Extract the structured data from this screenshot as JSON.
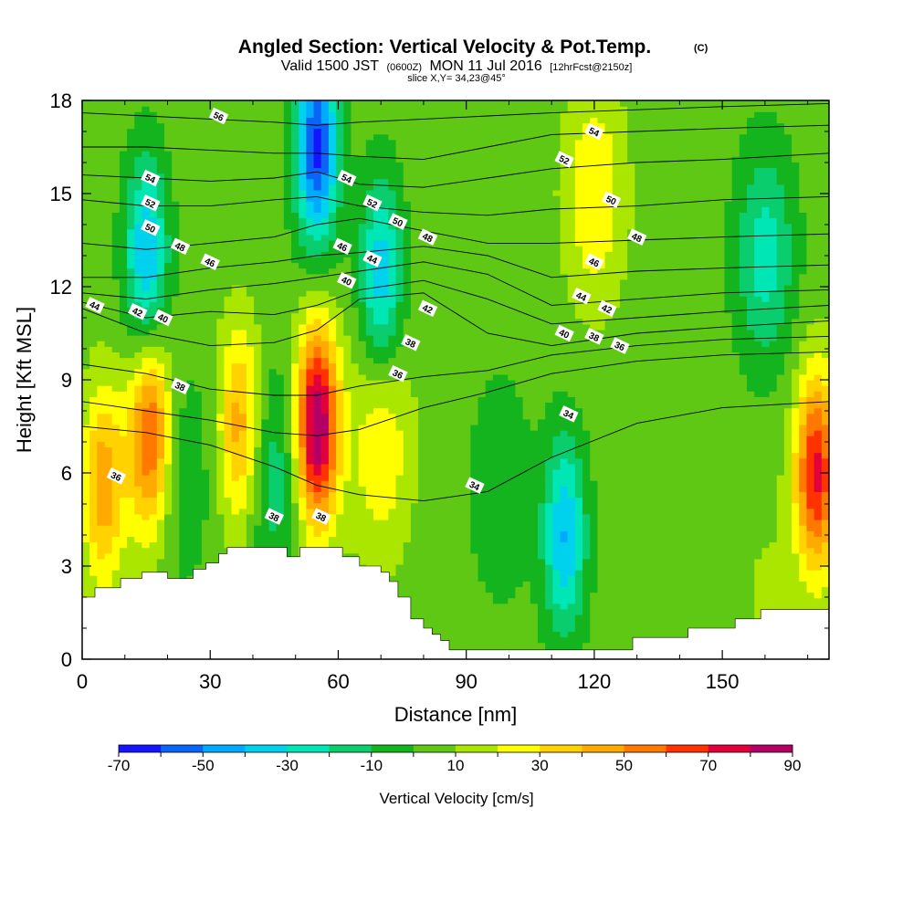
{
  "chart_data": {
    "type": "heatmap",
    "title": "Angled Section: Vertical Velocity & Pot.Temp.",
    "title_mark": "(C)",
    "subtitle_parts": [
      "Valid 1500 JST",
      "(0600Z)",
      "MON 11 Jul 2016",
      "[12hrFcst@2150z]"
    ],
    "slice_label": "slice X,Y= 34,23@45°",
    "xlabel": "Distance [nm]",
    "ylabel": "Height [Kft MSL]",
    "xlim": [
      0,
      175
    ],
    "ylim": [
      0,
      18
    ],
    "xticks": [
      0,
      30,
      60,
      90,
      120,
      150
    ],
    "yticks": [
      0,
      3,
      6,
      9,
      12,
      15,
      18
    ],
    "colorbar": {
      "label": "Vertical Velocity [cm/s]",
      "tick_labels": [
        -70,
        -50,
        -30,
        -10,
        10,
        30,
        50,
        70,
        90
      ],
      "bounds": [
        -70,
        -60,
        -50,
        -40,
        -30,
        -20,
        -10,
        0,
        10,
        20,
        30,
        40,
        50,
        60,
        70,
        80,
        90
      ],
      "colors": [
        "#1414ff",
        "#0a64f5",
        "#00aaff",
        "#00d2ee",
        "#00e6b4",
        "#0acd6e",
        "#14b41e",
        "#5fc814",
        "#aae600",
        "#ffff00",
        "#ffd200",
        "#ffaa00",
        "#ff7800",
        "#ff3200",
        "#e1003c",
        "#b40064"
      ]
    },
    "w_features": [
      {
        "x": 55,
        "z": 7.5,
        "w": 88
      },
      {
        "x": 16,
        "z": 7.2,
        "w": 60
      },
      {
        "x": 5,
        "z": 5.6,
        "w": 42
      },
      {
        "x": 37,
        "z": 7.5,
        "w": 42
      },
      {
        "x": 172,
        "z": 6.0,
        "w": 68
      },
      {
        "x": 70,
        "z": 7.0,
        "w": 25
      },
      {
        "x": 55,
        "z": 16.5,
        "w": -68
      },
      {
        "x": 15,
        "z": 13.0,
        "w": -46
      },
      {
        "x": 70,
        "z": 12.3,
        "w": -42
      },
      {
        "x": 113,
        "z": 4.0,
        "w": -45
      },
      {
        "x": 160,
        "z": 13.0,
        "w": -30
      },
      {
        "x": 98,
        "z": 5.5,
        "w": -15
      },
      {
        "x": 45,
        "z": 6.0,
        "w": -22
      },
      {
        "x": 23,
        "z": 6.0,
        "w": -15
      },
      {
        "x": 120,
        "z": 15.0,
        "w": 25
      },
      {
        "x": 160,
        "z": 2.0,
        "w": 6
      }
    ],
    "theta_isolines": [
      {
        "label": "34",
        "z": [
          7.5,
          7.3,
          6.9,
          6.2,
          5.6,
          5.3,
          5.1,
          5.4,
          6.5,
          7.6,
          8.1,
          8.3
        ]
      },
      {
        "label": "36",
        "z": [
          8.3,
          8.0,
          7.7,
          7.3,
          7.2,
          7.4,
          8.1,
          8.6,
          9.2,
          9.6,
          9.8,
          9.9
        ]
      },
      {
        "label": "38",
        "z": [
          9.5,
          9.2,
          8.7,
          8.5,
          8.5,
          8.8,
          9.1,
          9.3,
          9.8,
          10.1,
          10.3,
          10.4
        ]
      },
      {
        "label": "40",
        "z": [
          11.3,
          10.5,
          10.1,
          10.2,
          10.6,
          11.6,
          11.8,
          10.5,
          10.1,
          10.5,
          10.7,
          10.9
        ]
      },
      {
        "label": "42",
        "z": [
          11.5,
          11.0,
          11.2,
          11.1,
          11.4,
          11.9,
          12.2,
          11.6,
          10.8,
          11.0,
          11.2,
          11.4
        ]
      },
      {
        "label": "44",
        "z": [
          11.8,
          11.6,
          11.9,
          12.1,
          12.3,
          12.5,
          12.8,
          12.4,
          11.4,
          11.6,
          11.8,
          11.9
        ]
      },
      {
        "label": "46",
        "z": [
          12.3,
          12.3,
          12.6,
          12.8,
          13.0,
          13.1,
          13.3,
          13.0,
          12.3,
          12.5,
          12.6,
          12.7
        ]
      },
      {
        "label": "48",
        "z": [
          13.4,
          13.2,
          13.4,
          13.6,
          14.0,
          14.2,
          13.8,
          13.4,
          13.4,
          13.5,
          13.6,
          13.7
        ]
      },
      {
        "label": "50",
        "z": [
          14.8,
          14.6,
          14.6,
          14.8,
          14.9,
          14.6,
          14.4,
          14.3,
          14.5,
          14.6,
          14.8,
          14.9
        ]
      },
      {
        "label": "52",
        "z": [
          15.6,
          15.5,
          15.4,
          15.5,
          15.7,
          15.3,
          15.2,
          15.5,
          15.8,
          16.0,
          16.1,
          16.3
        ]
      },
      {
        "label": "54",
        "z": [
          16.5,
          16.5,
          16.4,
          16.3,
          16.3,
          16.2,
          16.1,
          16.5,
          16.9,
          17.0,
          17.1,
          17.2
        ]
      },
      {
        "label": "56",
        "z": [
          17.6,
          17.5,
          17.4,
          17.3,
          17.2,
          17.3,
          17.4,
          17.5,
          17.6,
          17.7,
          17.8,
          17.9
        ]
      }
    ],
    "theta_isoline_x": [
      0,
      15,
      30,
      45,
      55,
      65,
      80,
      95,
      110,
      130,
      150,
      175
    ],
    "contour_labels": [
      {
        "text": "56",
        "x": 32,
        "z": 17.5
      },
      {
        "text": "54",
        "x": 16,
        "z": 15.5
      },
      {
        "text": "52",
        "x": 16,
        "z": 14.7
      },
      {
        "text": "50",
        "x": 16,
        "z": 13.9
      },
      {
        "text": "48",
        "x": 23,
        "z": 13.3
      },
      {
        "text": "46",
        "x": 30,
        "z": 12.8
      },
      {
        "text": "44",
        "x": 3,
        "z": 11.4
      },
      {
        "text": "42",
        "x": 13,
        "z": 11.2
      },
      {
        "text": "40",
        "x": 19,
        "z": 11.0
      },
      {
        "text": "38",
        "x": 23,
        "z": 8.8
      },
      {
        "text": "36",
        "x": 8,
        "z": 5.9
      },
      {
        "text": "38",
        "x": 45,
        "z": 4.6
      },
      {
        "text": "38",
        "x": 56,
        "z": 4.6
      },
      {
        "text": "54",
        "x": 62,
        "z": 15.5
      },
      {
        "text": "52",
        "x": 68,
        "z": 14.7
      },
      {
        "text": "50",
        "x": 74,
        "z": 14.1
      },
      {
        "text": "48",
        "x": 81,
        "z": 13.6
      },
      {
        "text": "46",
        "x": 61,
        "z": 13.3
      },
      {
        "text": "44",
        "x": 68,
        "z": 12.9
      },
      {
        "text": "40",
        "x": 62,
        "z": 12.2
      },
      {
        "text": "42",
        "x": 81,
        "z": 11.3
      },
      {
        "text": "38",
        "x": 77,
        "z": 10.2
      },
      {
        "text": "36",
        "x": 74,
        "z": 9.2
      },
      {
        "text": "34",
        "x": 92,
        "z": 5.6
      },
      {
        "text": "54",
        "x": 120,
        "z": 17.0
      },
      {
        "text": "52",
        "x": 113,
        "z": 16.1
      },
      {
        "text": "50",
        "x": 124,
        "z": 14.8
      },
      {
        "text": "48",
        "x": 130,
        "z": 13.6
      },
      {
        "text": "46",
        "x": 120,
        "z": 12.8
      },
      {
        "text": "44",
        "x": 117,
        "z": 11.7
      },
      {
        "text": "42",
        "x": 123,
        "z": 11.3
      },
      {
        "text": "40",
        "x": 113,
        "z": 10.5
      },
      {
        "text": "38",
        "x": 120,
        "z": 10.4
      },
      {
        "text": "36",
        "x": 126,
        "z": 10.1
      },
      {
        "text": "34",
        "x": 114,
        "z": 7.9
      }
    ],
    "terrain": {
      "x": [
        0,
        3,
        3,
        9,
        9,
        14,
        14,
        20,
        20,
        26,
        26,
        29,
        29,
        32,
        32,
        34,
        34,
        36,
        36,
        38,
        38,
        40,
        40,
        42,
        42,
        45,
        45,
        48,
        48,
        51,
        51,
        54,
        54,
        58,
        58,
        61,
        61,
        63,
        63,
        65,
        65,
        70,
        70,
        72,
        72,
        74,
        74,
        77,
        77,
        80,
        80,
        82,
        82,
        84,
        84,
        86,
        86,
        88,
        88,
        90,
        90,
        93,
        93,
        96,
        96,
        100,
        100,
        110,
        110,
        120,
        120,
        129,
        129,
        135,
        135,
        142,
        142,
        144,
        144,
        153,
        153,
        159,
        159,
        166,
        166,
        175
      ],
      "z": [
        2.0,
        2.0,
        2.3,
        2.3,
        2.6,
        2.6,
        2.8,
        2.8,
        2.6,
        2.6,
        2.9,
        2.9,
        3.1,
        3.1,
        3.4,
        3.4,
        3.6,
        3.6,
        3.6,
        3.6,
        3.6,
        3.6,
        3.6,
        3.6,
        3.6,
        3.6,
        3.6,
        3.6,
        3.3,
        3.3,
        3.6,
        3.6,
        3.6,
        3.6,
        3.6,
        3.6,
        3.3,
        3.3,
        3.3,
        3.3,
        3.0,
        3.0,
        2.8,
        2.8,
        2.5,
        2.5,
        2.0,
        2.0,
        1.3,
        1.3,
        1.0,
        1.0,
        0.8,
        0.8,
        0.6,
        0.6,
        0.3,
        0.3,
        0.3,
        0.3,
        0.3,
        0.3,
        0.3,
        0.3,
        0.3,
        0.3,
        0.3,
        0.3,
        0.3,
        0.3,
        0.3,
        0.3,
        0.7,
        0.7,
        0.7,
        0.7,
        1.0,
        1.0,
        1.0,
        1.0,
        1.3,
        1.3,
        1.6,
        1.6,
        1.6,
        1.6
      ]
    }
  }
}
